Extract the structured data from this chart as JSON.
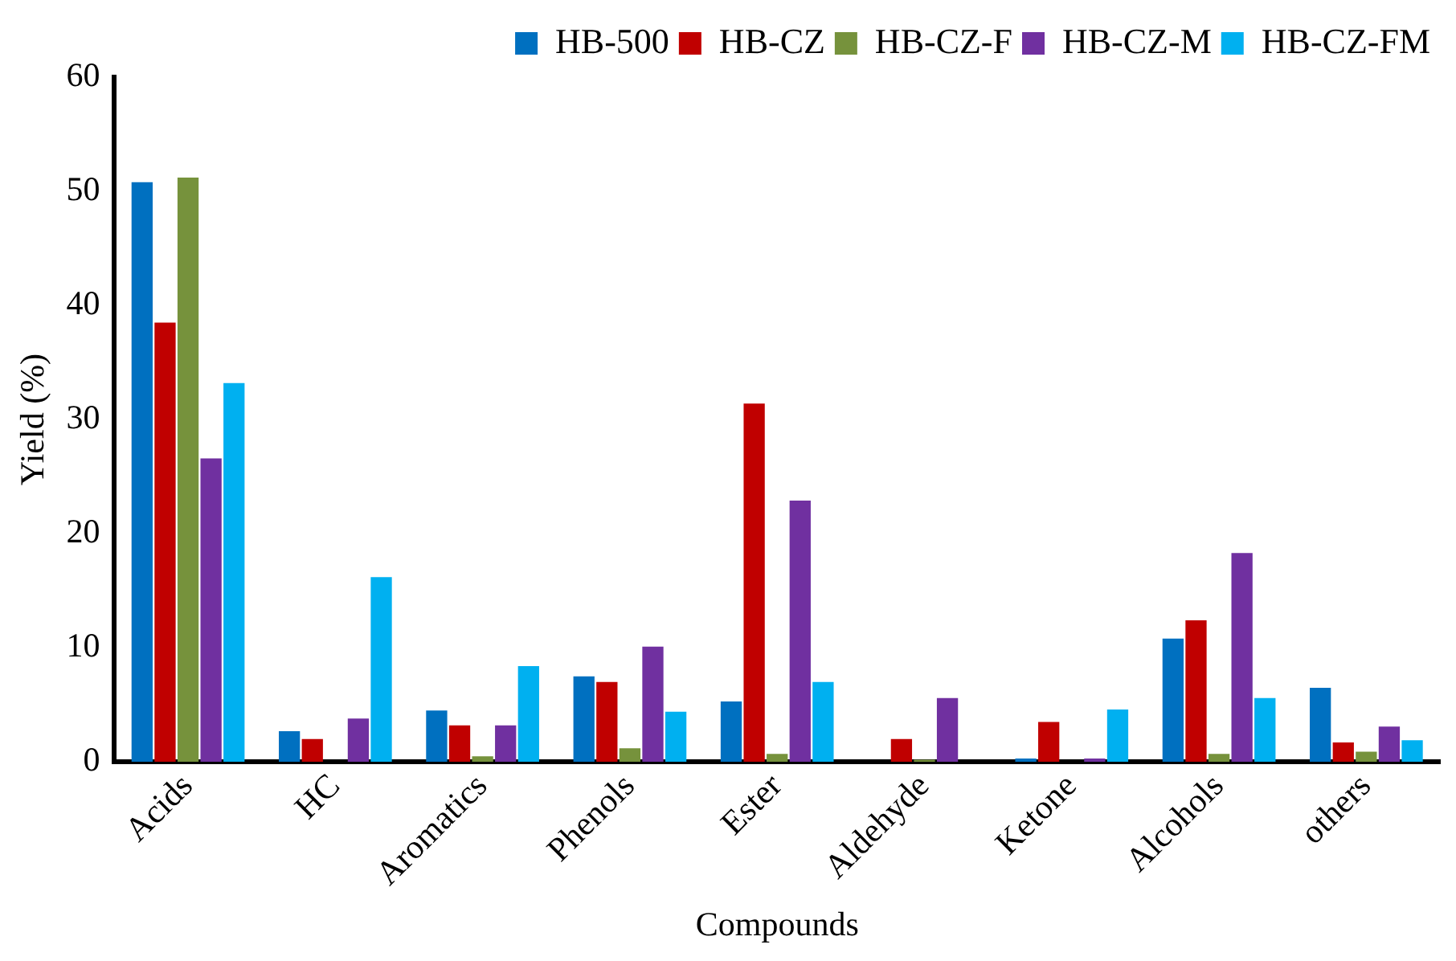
{
  "chart_data": {
    "type": "bar",
    "xlabel": "Compounds",
    "ylabel": "Yield (%)",
    "categories": [
      "Acids",
      "HC",
      "Aromatics",
      "Phenols",
      "Ester",
      "Aldehyde",
      "Ketone",
      "Alcohols",
      "others"
    ],
    "series": [
      {
        "name": "HB-500",
        "color": "#0070c0",
        "values": [
          50.8,
          2.7,
          4.5,
          7.5,
          5.3,
          0,
          0.3,
          10.8,
          6.5
        ]
      },
      {
        "name": "HB-CZ",
        "color": "#c00000",
        "values": [
          38.5,
          2.0,
          3.2,
          7.0,
          31.4,
          2.0,
          3.5,
          12.4,
          1.7
        ]
      },
      {
        "name": "HB-CZ-F",
        "color": "#76923c",
        "values": [
          51.2,
          0,
          0.5,
          1.2,
          0.7,
          0.2,
          0,
          0.7,
          0.9
        ]
      },
      {
        "name": "HB-CZ-M",
        "color": "#7030a0",
        "values": [
          26.6,
          3.8,
          3.2,
          10.1,
          22.9,
          5.6,
          0.3,
          18.3,
          3.1
        ]
      },
      {
        "name": "HB-CZ-FM",
        "color": "#00b0f0",
        "values": [
          33.2,
          16.2,
          8.4,
          4.4,
          7.0,
          0,
          4.6,
          5.6,
          1.9
        ]
      }
    ],
    "ylim": [
      0,
      60
    ],
    "yticks": [
      0,
      10,
      20,
      30,
      40,
      50,
      60
    ],
    "grid": false,
    "legend": "top right"
  }
}
